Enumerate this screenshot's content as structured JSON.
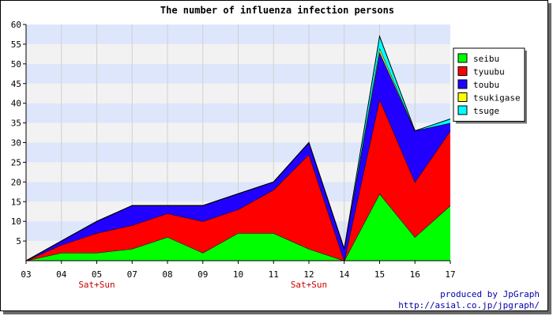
{
  "chart_data": {
    "type": "area",
    "title": "The number of influenza infection persons",
    "stacked": true,
    "categories": [
      "03",
      "04",
      "05",
      "07",
      "08",
      "09",
      "10",
      "11",
      "12",
      "14",
      "15",
      "16",
      "17"
    ],
    "ylim": [
      0,
      60
    ],
    "yticks": [
      5,
      10,
      15,
      20,
      25,
      30,
      35,
      40,
      45,
      50,
      55,
      60
    ],
    "grid": true,
    "legend_position": "right",
    "series": [
      {
        "name": "seibu",
        "color": "#00ff00",
        "values": [
          0,
          2,
          2,
          3,
          6,
          2,
          7,
          7,
          3,
          0,
          17,
          6,
          14
        ]
      },
      {
        "name": "tyuubu",
        "color": "#ff0000",
        "values": [
          0,
          2,
          5,
          6,
          6,
          8,
          6,
          11,
          24,
          0,
          24,
          14,
          19
        ]
      },
      {
        "name": "toubu",
        "color": "#2200ff",
        "values": [
          0,
          1,
          3,
          5,
          2,
          4,
          4,
          2,
          3,
          3,
          12,
          13,
          2
        ]
      },
      {
        "name": "tsukigase",
        "color": "#ffff00",
        "values": [
          0,
          0,
          0,
          0,
          0,
          0,
          0,
          0,
          0,
          0,
          1,
          0,
          0
        ]
      },
      {
        "name": "tsuge",
        "color": "#00ffff",
        "values": [
          0,
          0,
          0,
          0,
          0,
          0,
          0,
          0,
          0,
          0,
          3,
          0,
          1
        ]
      }
    ],
    "annotations": [
      {
        "text": "Sat+Sun",
        "category": "05"
      },
      {
        "text": "Sat+Sun",
        "category": "12"
      }
    ]
  },
  "credits": {
    "line1": "produced by JpGraph",
    "line2": "http://asial.co.jp/jpgraph/"
  }
}
